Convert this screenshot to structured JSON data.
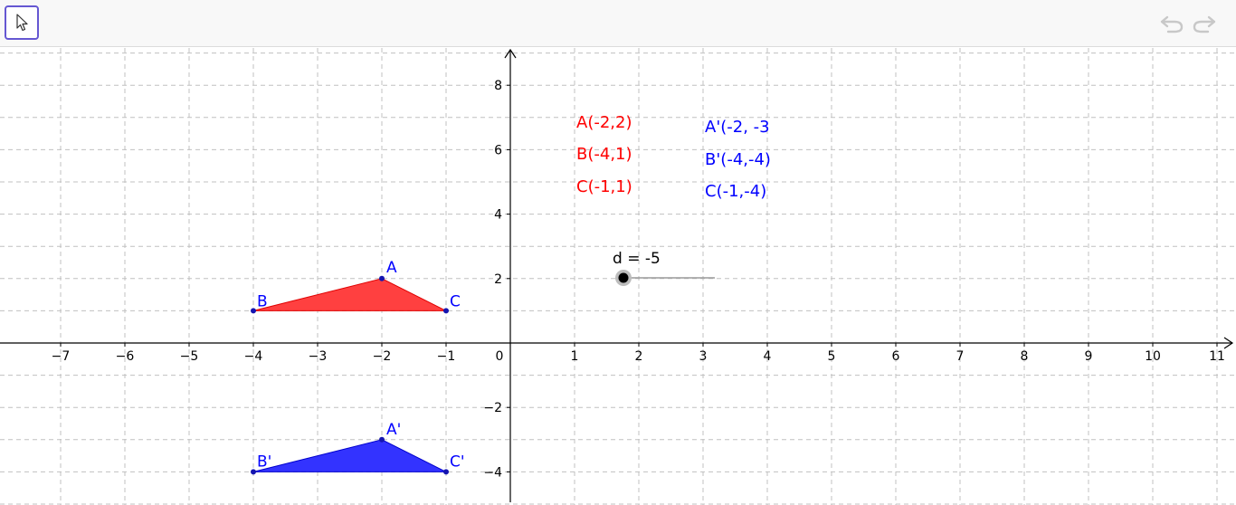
{
  "toolbar": {
    "active_tool_icon": "move-arrow-icon",
    "undo_icon": "undo-icon",
    "redo_icon": "redo-icon"
  },
  "graph": {
    "x_ticks": [
      "−7",
      "−6",
      "−5",
      "−4",
      "−3",
      "−2",
      "−1",
      "0",
      "1",
      "2",
      "3",
      "4",
      "5",
      "6",
      "7",
      "8",
      "9",
      "10",
      "11"
    ],
    "y_ticks_pos": [
      "2",
      "4",
      "6",
      "8"
    ],
    "y_ticks_neg": [
      "−2",
      "−4"
    ]
  },
  "points": {
    "A": {
      "label": "A",
      "x": -2,
      "y": 2
    },
    "B": {
      "label": "B",
      "x": -4,
      "y": 1
    },
    "C": {
      "label": "C",
      "x": -1,
      "y": 1
    },
    "A_prime": {
      "label": "A'",
      "x": -2,
      "y": -3
    },
    "B_prime": {
      "label": "B'",
      "x": -4,
      "y": -4
    },
    "C_prime": {
      "label": "C'",
      "x": -1,
      "y": -4
    }
  },
  "texts": {
    "original": [
      "A(-2,2)",
      "B(-4,1)",
      "C(-1,1)"
    ],
    "image": [
      "A'(-2, -3",
      "B'(-4,-4)",
      "C(-1,-4)"
    ]
  },
  "slider": {
    "label": "d = -5",
    "value": -5
  },
  "colors": {
    "original": "#ff0000",
    "image": "#0000ff",
    "point": "#1515b0",
    "fill_original": "#ff4040",
    "fill_image": "#3333ff",
    "grid": "#c0c0c0",
    "toolbar_accent": "#6557d2"
  }
}
